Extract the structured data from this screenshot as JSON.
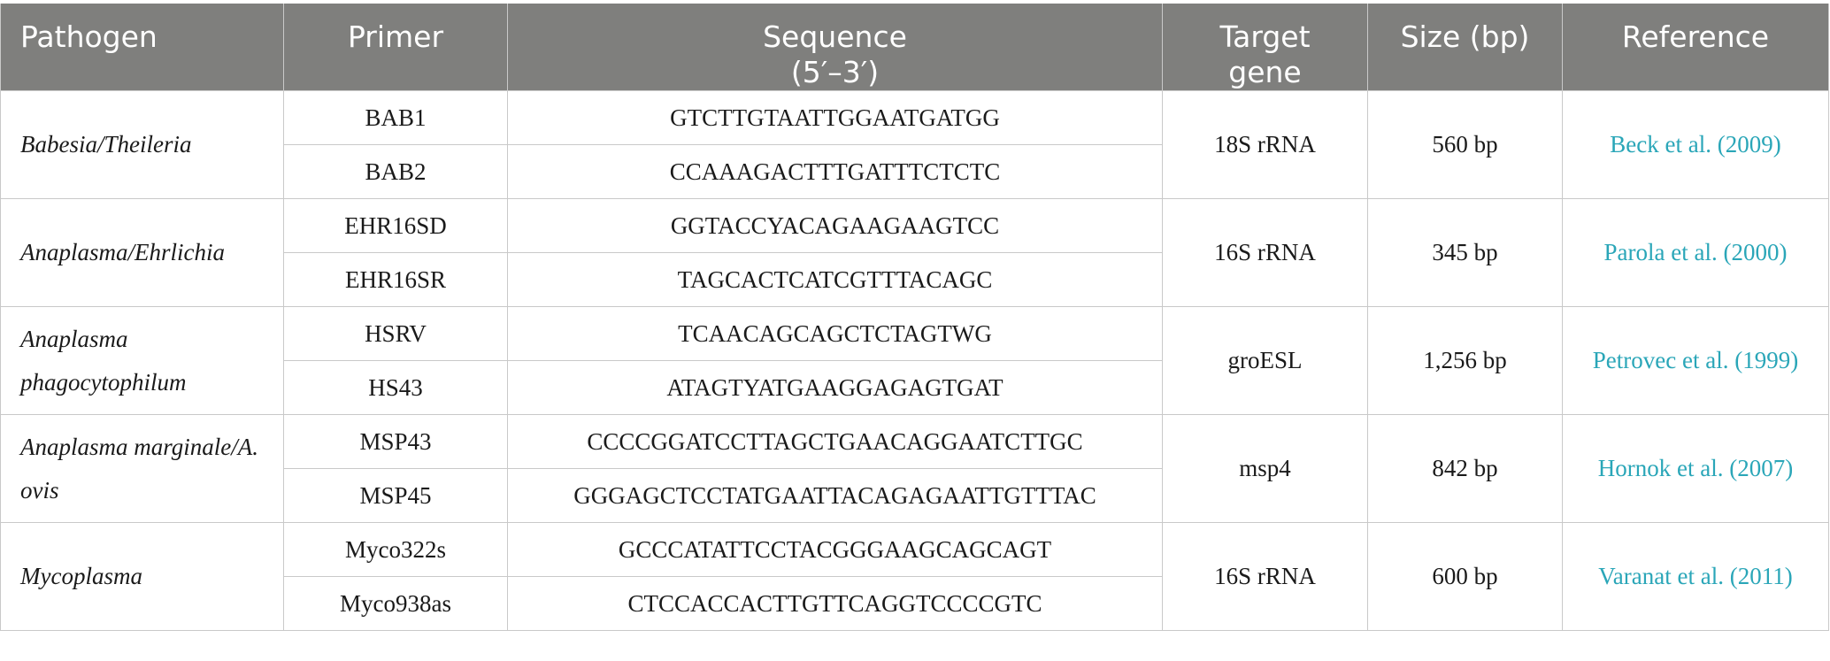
{
  "headers": {
    "pathogen": "Pathogen",
    "primer": "Primer",
    "sequence_line1": "Sequence",
    "sequence_line2": "(5′–3′)",
    "target_line1": "Target",
    "target_line2": "gene",
    "size": "Size (bp)",
    "reference": "Reference"
  },
  "groups": [
    {
      "pathogen": "Babesia/Theileria",
      "primers": [
        {
          "name": "BAB1",
          "sequence": "GTCTTGTAATTGGAATGATGG"
        },
        {
          "name": "BAB2",
          "sequence": "CCAAAGACTTTGATTTCTCTC"
        }
      ],
      "target": "18S rRNA",
      "size": "560 bp",
      "reference": "Beck et al. (2009)"
    },
    {
      "pathogen": "Anaplasma/Ehrlichia",
      "primers": [
        {
          "name": "EHR16SD",
          "sequence": "GGTACCYACAGAAGAAGTCC"
        },
        {
          "name": "EHR16SR",
          "sequence": "TAGCACTCATCGTTTACAGC"
        }
      ],
      "target": "16S rRNA",
      "size": "345 bp",
      "reference": "Parola et al. (2000)"
    },
    {
      "pathogen": "Anaplasma phagocytophilum",
      "primers": [
        {
          "name": "HSRV",
          "sequence": "TCAACAGCAGCTCTAGTWG"
        },
        {
          "name": "HS43",
          "sequence": "ATAGTYATGAAGGAGAGTGAT"
        }
      ],
      "target": "groESL",
      "size": "1,256 bp",
      "reference": "Petrovec et al. (1999)"
    },
    {
      "pathogen": "Anaplasma marginale/A. ovis",
      "primers": [
        {
          "name": "MSP43",
          "sequence": "CCCCGGATCCTTAGCTGAACAGGAATCTTGC"
        },
        {
          "name": "MSP45",
          "sequence": "GGGAGCTCCTATGAATTACAGAGAATTGTTTAC"
        }
      ],
      "target": "msp4",
      "size": "842 bp",
      "reference": "Hornok et al. (2007)"
    },
    {
      "pathogen": "Mycoplasma",
      "primers": [
        {
          "name": "Myco322s",
          "sequence": "GCCCATATTCCTACGGGAAGCAGCAGT"
        },
        {
          "name": "Myco938as",
          "sequence": "CTCCACCACTTGTTCAGGTCCCCGTC"
        }
      ],
      "target": "16S rRNA",
      "size": "600 bp",
      "reference": "Varanat et al. (2011)"
    }
  ]
}
